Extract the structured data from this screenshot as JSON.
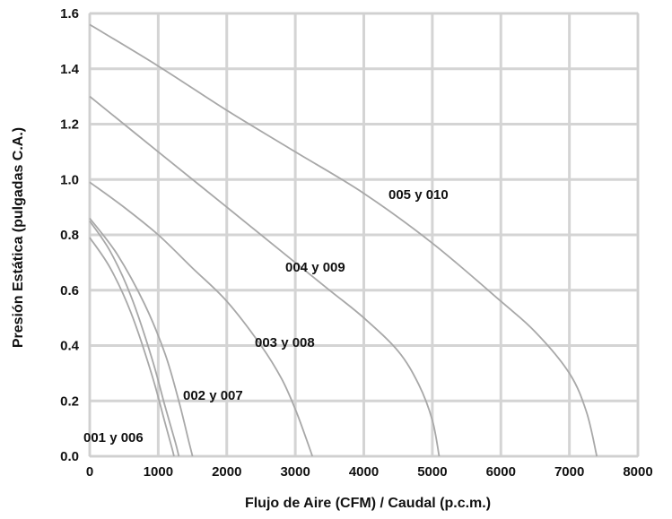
{
  "chart_data": {
    "type": "line",
    "xlabel": "Flujo de Aire (CFM) / Caudal (p.c.m.)",
    "ylabel": "Presión Estática  (pulgadas C.A.)",
    "xlim": [
      0,
      8000
    ],
    "ylim": [
      0,
      1.6
    ],
    "x_ticks": [
      "0",
      "1000",
      "2000",
      "3000",
      "4000",
      "5000",
      "6000",
      "7000",
      "8000"
    ],
    "y_ticks": [
      "0.0",
      "0.2",
      "0.4",
      "0.6",
      "0.8",
      "1.0",
      "1.2",
      "1.4",
      "1.6"
    ],
    "grid": true,
    "legend": "none",
    "series": [
      {
        "name": "001 y 006",
        "x": [
          0,
          300,
          600,
          900,
          1100,
          1200,
          1230
        ],
        "y": [
          0.79,
          0.68,
          0.52,
          0.3,
          0.12,
          0.03,
          0.0
        ]
      },
      {
        "name": "",
        "x": [
          0,
          300,
          600,
          900,
          1100,
          1250,
          1300
        ],
        "y": [
          0.85,
          0.74,
          0.58,
          0.36,
          0.18,
          0.05,
          0.0
        ]
      },
      {
        "name": "002 y 007",
        "x": [
          0,
          400,
          800,
          1100,
          1300,
          1450,
          1500
        ],
        "y": [
          0.86,
          0.73,
          0.55,
          0.37,
          0.2,
          0.05,
          0.0
        ]
      },
      {
        "name": "003 y 008",
        "x": [
          0,
          500,
          1000,
          1500,
          2000,
          2500,
          2800,
          3000,
          3150,
          3250
        ],
        "y": [
          0.99,
          0.9,
          0.8,
          0.68,
          0.56,
          0.4,
          0.28,
          0.17,
          0.07,
          0.0
        ]
      },
      {
        "name": "004 y 009",
        "x": [
          0,
          500,
          1000,
          2000,
          3000,
          3500,
          4000,
          4500,
          4800,
          5000,
          5100
        ],
        "y": [
          1.3,
          1.2,
          1.1,
          0.9,
          0.7,
          0.6,
          0.5,
          0.38,
          0.26,
          0.13,
          0.0
        ]
      },
      {
        "name": "005 y 010",
        "x": [
          0,
          1000,
          2000,
          3000,
          4000,
          5000,
          6000,
          6500,
          7000,
          7250,
          7400
        ],
        "y": [
          1.56,
          1.41,
          1.25,
          1.1,
          0.95,
          0.77,
          0.56,
          0.45,
          0.3,
          0.16,
          0.0
        ]
      }
    ]
  }
}
